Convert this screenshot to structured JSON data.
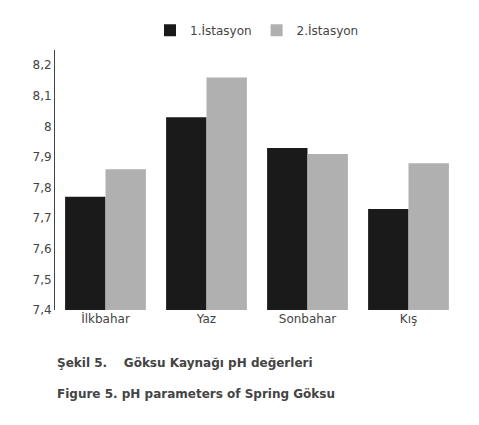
{
  "chart_data": {
    "type": "bar",
    "categories": [
      "İlkbahar",
      "Yaz",
      "Sonbahar",
      "Kış"
    ],
    "series": [
      {
        "name": "1.İstasyon",
        "color": "#1a1a1a",
        "values": [
          7.77,
          8.03,
          7.93,
          7.73
        ]
      },
      {
        "name": "2.İstasyon",
        "color": "#b0b0b0",
        "values": [
          7.86,
          8.16,
          7.91,
          7.88
        ]
      }
    ],
    "ylim": [
      7.4,
      8.25
    ],
    "yticks": [
      {
        "value": 7.4,
        "label": "7,4"
      },
      {
        "value": 7.5,
        "label": "7,5"
      },
      {
        "value": 7.6,
        "label": "7,6"
      },
      {
        "value": 7.7,
        "label": "7,7"
      },
      {
        "value": 7.8,
        "label": "7,8"
      },
      {
        "value": 7.9,
        "label": "7,9"
      },
      8,
      {
        "value": 8.1,
        "label": "8,1"
      },
      {
        "value": 8.2,
        "label": "8,2"
      }
    ],
    "grid": false,
    "legend": "top",
    "annotations": [
      "Şekil 5.    Göksu Kaynağı pH değerleri",
      "Figure 5. pH parameters of Spring Göksu"
    ]
  }
}
